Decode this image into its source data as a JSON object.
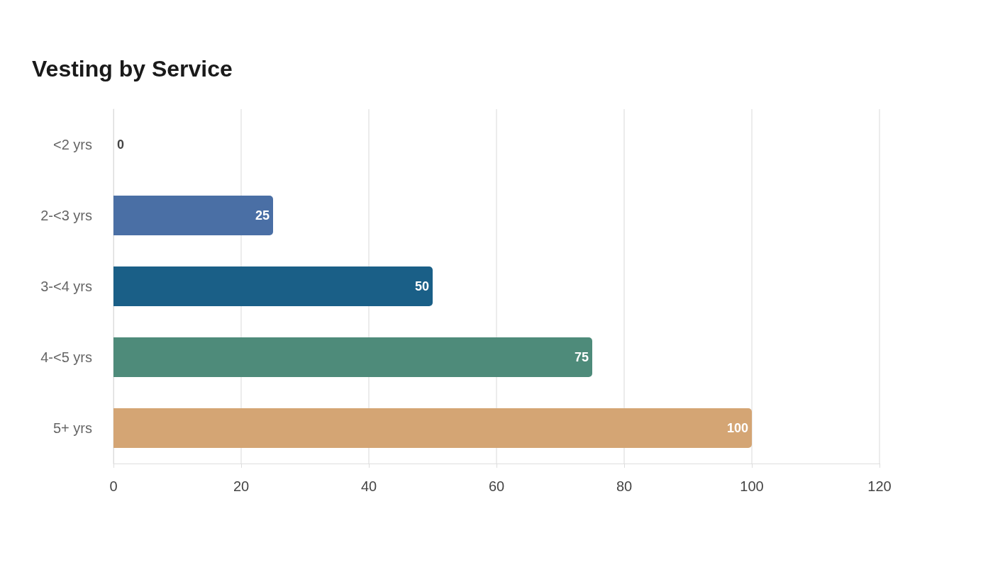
{
  "chart_data": {
    "type": "bar",
    "orientation": "horizontal",
    "title": "Vesting by Service",
    "categories": [
      "<2 yrs",
      "2-<3 yrs",
      "3-<4 yrs",
      "4-<5 yrs",
      "5+ yrs"
    ],
    "values": [
      0,
      25,
      50,
      75,
      100
    ],
    "colors": [
      "#7f9cc4",
      "#4a6fa5",
      "#1a5f87",
      "#4e8b7a",
      "#d4a574"
    ],
    "xlim": [
      0,
      120
    ],
    "xticks": [
      0,
      20,
      40,
      60,
      80,
      100,
      120
    ],
    "grid": "x",
    "data_labels": true
  }
}
